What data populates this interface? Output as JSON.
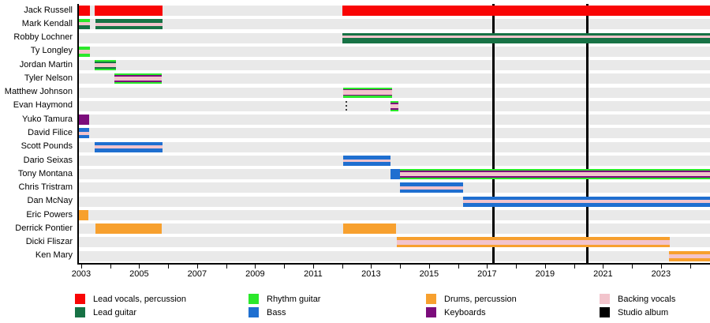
{
  "chart_data": {
    "type": "bar",
    "subtype": "band-membership-timeline-gantt",
    "title": "",
    "grid": false,
    "legend_position": "bottom",
    "x_axis": {
      "start": 2002.92,
      "end": 2024.69,
      "tick_years": [
        2003,
        2004,
        2005,
        2006,
        2007,
        2008,
        2009,
        2010,
        2011,
        2012,
        2013,
        2014,
        2015,
        2016,
        2017,
        2018,
        2019,
        2020,
        2021,
        2022,
        2023,
        2024
      ],
      "label_years": [
        "2003",
        "2005",
        "2007",
        "2009",
        "2011",
        "2013",
        "2015",
        "2017",
        "2019",
        "2021",
        "2023"
      ]
    },
    "colors": {
      "red": "#f90505",
      "lead_guitar": "#177245",
      "rhythm_guitar": "#2be82b",
      "bass": "#1f6fd0",
      "drums": "#f7a02e",
      "keyboards": "#7b0c7b",
      "backing_vocals": "#f2c4cc",
      "studio_album": "#000000",
      "row_strip": "#e9e9e9"
    },
    "event_lines": {
      "label": "Studio album",
      "color_key": "studio_album",
      "years": [
        2017.2,
        2020.45
      ]
    },
    "rows": [
      {
        "name": "Jack Russell",
        "bars": [
          {
            "start": 2002.92,
            "end": 2003.3,
            "stripes": [
              [
                "red",
                1
              ]
            ]
          },
          {
            "start": 2003.46,
            "end": 2005.8,
            "stripes": [
              [
                "red",
                1
              ]
            ]
          },
          {
            "start": 2012.0,
            "end": 2024.69,
            "stripes": [
              [
                "red",
                1
              ]
            ]
          }
        ]
      },
      {
        "name": "Mark Kendall",
        "bars": [
          {
            "start": 2002.92,
            "end": 2003.3,
            "stripes": [
              [
                "rhythm_guitar",
                3
              ],
              [
                "backing_vocals",
                3
              ],
              [
                "lead_guitar",
                4
              ]
            ]
          },
          {
            "start": 2003.49,
            "end": 2005.8,
            "stripes": [
              [
                "lead_guitar",
                36
              ],
              [
                "backing_vocals",
                28
              ],
              [
                "lead_guitar",
                36
              ]
            ]
          }
        ]
      },
      {
        "name": "Robby Lochner",
        "bars": [
          {
            "start": 2012.0,
            "end": 2024.69,
            "stripes": [
              [
                "lead_guitar",
                28
              ],
              [
                "backing_vocals",
                22
              ],
              [
                "lead_guitar",
                50
              ]
            ]
          }
        ]
      },
      {
        "name": "Ty Longley",
        "bars": [
          {
            "start": 2002.92,
            "end": 2003.3,
            "stripes": [
              [
                "rhythm_guitar",
                30
              ],
              [
                "backing_vocals",
                40
              ],
              [
                "rhythm_guitar",
                30
              ]
            ]
          }
        ]
      },
      {
        "name": "Jordan Martin",
        "bars": [
          {
            "start": 2003.46,
            "end": 2004.2,
            "stripes": [
              [
                "rhythm_guitar",
                16
              ],
              [
                "lead_guitar",
                14
              ],
              [
                "backing_vocals",
                40
              ],
              [
                "lead_guitar",
                14
              ],
              [
                "rhythm_guitar",
                16
              ]
            ]
          }
        ]
      },
      {
        "name": "Tyler Nelson",
        "bars": [
          {
            "start": 2004.14,
            "end": 2005.78,
            "stripes": [
              [
                "rhythm_guitar",
                16
              ],
              [
                "keyboards",
                14
              ],
              [
                "backing_vocals",
                40
              ],
              [
                "keyboards",
                14
              ],
              [
                "rhythm_guitar",
                16
              ]
            ]
          }
        ]
      },
      {
        "name": "Matthew Johnson",
        "bars": [
          {
            "start": 2012.03,
            "end": 2013.72,
            "stripes": [
              [
                "rhythm_guitar",
                16
              ],
              [
                "keyboards",
                14
              ],
              [
                "backing_vocals",
                40
              ],
              [
                "keyboards",
                14
              ],
              [
                "rhythm_guitar",
                16
              ]
            ]
          }
        ]
      },
      {
        "name": "Evan Haymond",
        "bars": [
          {
            "start": 2012.12,
            "end": 2012.18,
            "dashed": true
          },
          {
            "start": 2013.67,
            "end": 2013.94,
            "stripes": [
              [
                "rhythm_guitar",
                16
              ],
              [
                "keyboards",
                14
              ],
              [
                "backing_vocals",
                40
              ],
              [
                "keyboards",
                14
              ],
              [
                "rhythm_guitar",
                16
              ]
            ]
          }
        ]
      },
      {
        "name": "Yuko Tamura",
        "bars": [
          {
            "start": 2002.92,
            "end": 2003.27,
            "stripes": [
              [
                "keyboards",
                1
              ]
            ]
          }
        ]
      },
      {
        "name": "David Filice",
        "bars": [
          {
            "start": 2002.92,
            "end": 2003.27,
            "stripes": [
              [
                "bass",
                36
              ],
              [
                "backing_vocals",
                28
              ],
              [
                "bass",
                36
              ]
            ]
          }
        ]
      },
      {
        "name": "Scott Pounds",
        "bars": [
          {
            "start": 2003.46,
            "end": 2005.8,
            "stripes": [
              [
                "bass",
                36
              ],
              [
                "backing_vocals",
                28
              ],
              [
                "bass",
                36
              ]
            ]
          }
        ]
      },
      {
        "name": "Dario Seixas",
        "bars": [
          {
            "start": 2012.03,
            "end": 2013.67,
            "stripes": [
              [
                "bass",
                36
              ],
              [
                "backing_vocals",
                28
              ],
              [
                "bass",
                36
              ]
            ]
          }
        ]
      },
      {
        "name": "Tony Montana",
        "bars": [
          {
            "start": 2013.67,
            "end": 2013.99,
            "stripes": [
              [
                "bass",
                1
              ]
            ]
          },
          {
            "start": 2013.99,
            "end": 2024.69,
            "stripes": [
              [
                "rhythm_guitar",
                16
              ],
              [
                "keyboards",
                14
              ],
              [
                "backing_vocals",
                40
              ],
              [
                "keyboards",
                14
              ],
              [
                "rhythm_guitar",
                16
              ]
            ]
          }
        ]
      },
      {
        "name": "Chris Tristram",
        "bars": [
          {
            "start": 2013.99,
            "end": 2016.17,
            "stripes": [
              [
                "bass",
                36
              ],
              [
                "backing_vocals",
                28
              ],
              [
                "bass",
                36
              ]
            ]
          }
        ]
      },
      {
        "name": "Dan McNay",
        "bars": [
          {
            "start": 2016.17,
            "end": 2024.69,
            "stripes": [
              [
                "bass",
                36
              ],
              [
                "backing_vocals",
                28
              ],
              [
                "bass",
                36
              ]
            ]
          }
        ]
      },
      {
        "name": "Eric Powers",
        "bars": [
          {
            "start": 2002.92,
            "end": 2003.24,
            "stripes": [
              [
                "drums",
                1
              ]
            ]
          }
        ]
      },
      {
        "name": "Derrick Pontier",
        "bars": [
          {
            "start": 2003.49,
            "end": 2005.78,
            "stripes": [
              [
                "drums",
                1
              ]
            ]
          },
          {
            "start": 2012.03,
            "end": 2013.85,
            "stripes": [
              [
                "drums",
                1
              ]
            ]
          }
        ]
      },
      {
        "name": "Dicki Fliszar",
        "bars": [
          {
            "start": 2013.9,
            "end": 2023.3,
            "stripes": [
              [
                "drums",
                30
              ],
              [
                "backing_vocals",
                40
              ],
              [
                "drums",
                30
              ]
            ]
          }
        ]
      },
      {
        "name": "Ken Mary",
        "bars": [
          {
            "start": 2023.28,
            "end": 2024.69,
            "stripes": [
              [
                "drums",
                30
              ],
              [
                "backing_vocals",
                40
              ],
              [
                "drums",
                30
              ]
            ]
          }
        ]
      }
    ],
    "legend_columns": [
      [
        {
          "key": "red",
          "label": "Lead vocals, percussion"
        },
        {
          "key": "lead_guitar",
          "label": "Lead guitar"
        }
      ],
      [
        {
          "key": "rhythm_guitar",
          "label": "Rhythm guitar"
        },
        {
          "key": "bass",
          "label": "Bass"
        }
      ],
      [
        {
          "key": "drums",
          "label": "Drums, percussion"
        },
        {
          "key": "keyboards",
          "label": "Keyboards"
        }
      ],
      [
        {
          "key": "backing_vocals",
          "label": "Backing vocals"
        },
        {
          "key": "studio_album",
          "label": "Studio album"
        }
      ]
    ],
    "legend_column_x": [
      95,
      315,
      540,
      760
    ]
  }
}
